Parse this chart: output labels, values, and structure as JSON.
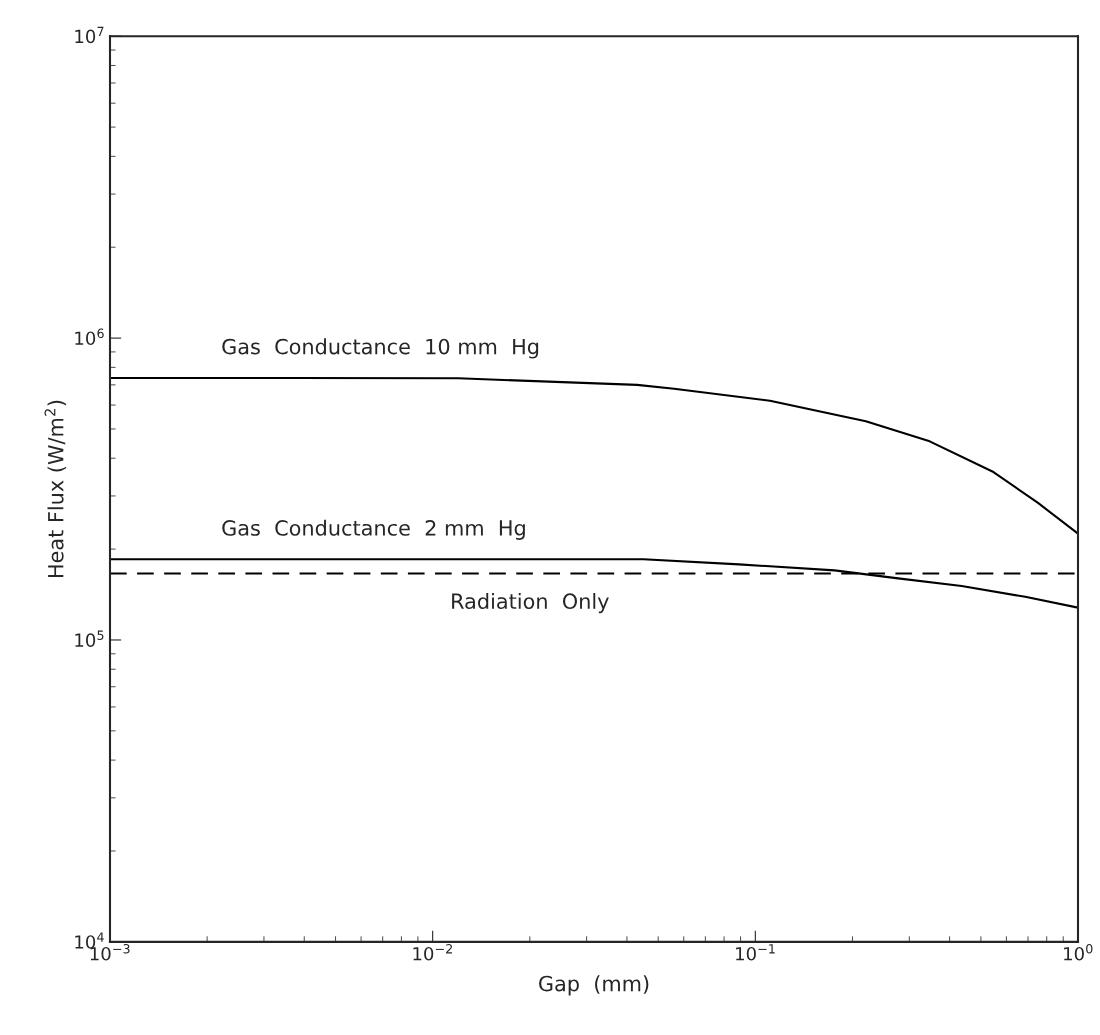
{
  "chart_data": {
    "type": "line",
    "xlabel": "Gap  (mm)",
    "ylabel": "Heat Flux (W/m$^{2}$)",
    "log": "xy",
    "grid": false,
    "legend": false,
    "marker": "none",
    "xlim": [
      0.001,
      1
    ],
    "ylim": [
      10000,
      10000000
    ],
    "xticks": [
      {
        "value": 0.001,
        "label": "10$^{−3}$"
      },
      {
        "value": 0.01,
        "label": "10$^{−2}$"
      },
      {
        "value": 0.1,
        "label": "10$^{−1}$"
      },
      {
        "value": 1,
        "label": "10$^{0}$"
      }
    ],
    "yticks": [
      {
        "value": 10000,
        "label": "10$^{4}$"
      },
      {
        "value": 100000,
        "label": "10$^{5}$"
      },
      {
        "value": 1000000,
        "label": "10$^{6}$"
      },
      {
        "value": 10000000,
        "label": "10$^{7}$"
      }
    ],
    "series": [
      {
        "name": "Gas  Conductance  10 mm  Hg",
        "color": "#000000",
        "line_style": "solid",
        "x": [
          0.001,
          0.0037,
          0.012,
          0.043,
          0.056,
          0.111,
          0.22,
          0.347,
          0.547,
          0.75,
          1
        ],
        "values": [
          738000,
          738000,
          736000,
          700000,
          680000,
          620000,
          530000,
          455000,
          360000,
          285000,
          225000
        ]
      },
      {
        "name": "Gas  Conductance  2 mm  Hg",
        "color": "#000000",
        "line_style": "solid",
        "x": [
          0.001,
          0.045,
          0.089,
          0.176,
          0.277,
          0.436,
          0.686,
          1
        ],
        "values": [
          185000,
          185000,
          178000,
          170000,
          160000,
          151000,
          139000,
          128000
        ]
      }
    ],
    "ref_lines": [
      {
        "axis": "y",
        "value": 166000,
        "label": "Radiation  Only",
        "color": "#000000",
        "line_style": "dashed"
      }
    ]
  }
}
